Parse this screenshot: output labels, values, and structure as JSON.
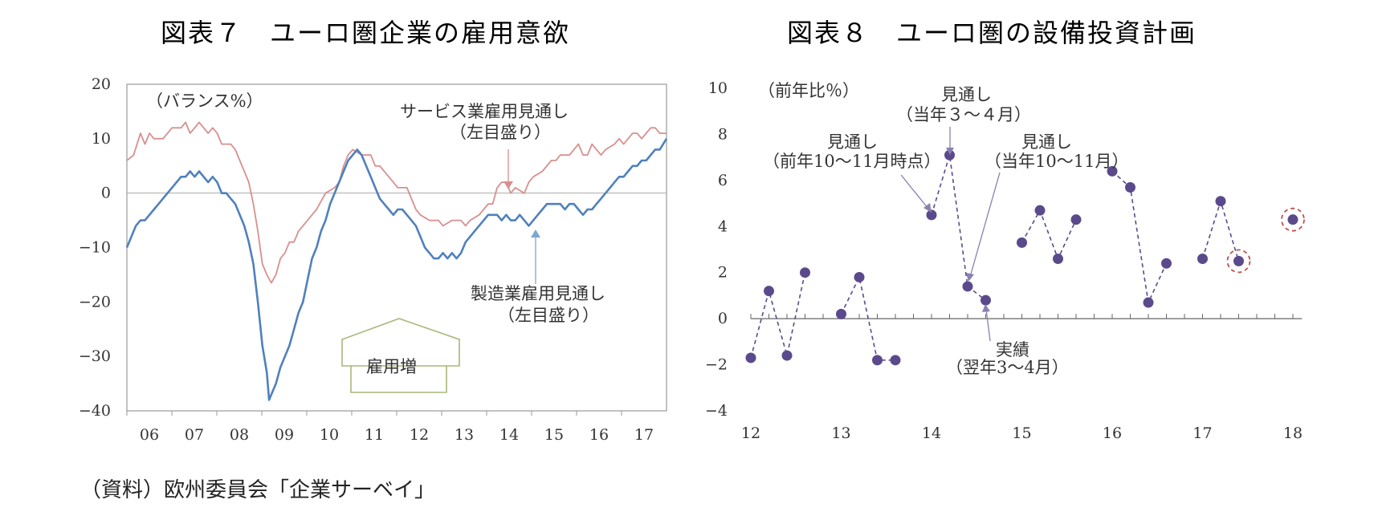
{
  "page": {
    "source_note": "（資料）欧州委員会「企業サーベイ」"
  },
  "charts": [
    {
      "title": "図表７　ユーロ圏企業の雇用意欲",
      "unit_label": "（バランス%）",
      "arrow_label": "雇用増",
      "series_labels": {
        "services_line1": "サービス業雇用見通し",
        "services_line2": "（左目盛り）",
        "manufacturing_line1": "製造業雇用見通し",
        "manufacturing_line2": "（左目盛り）"
      },
      "colors": {
        "services": "#d98f8f",
        "manufacturing": "#4f81bd",
        "zero": "#aaaaaa"
      }
    },
    {
      "title": "図表８　ユーロ圏の設備投資計画",
      "unit_label": "（前年比％）",
      "annotations": {
        "a1_line1": "見通し",
        "a1_line2": "（当年３～４月）",
        "a2_line1": "見通し",
        "a2_line2": "（前年10～11月時点）",
        "a3_line1": "見通し",
        "a3_line2": "（当年10～11月）",
        "a4_line1": "実績",
        "a4_line2": "（翌年3～4月）"
      },
      "colors": {
        "points": "#5b4a8b",
        "highlight": "#c0504d"
      }
    }
  ],
  "chart_data": [
    {
      "type": "line",
      "title": "図表７　ユーロ圏企業の雇用意欲",
      "ylabel": "（バランス%）",
      "ylim": [
        -40,
        20
      ],
      "yticks": [
        "20",
        "10",
        "0",
        "-10",
        "-20",
        "-30",
        "-40"
      ],
      "xticks": [
        "06",
        "07",
        "08",
        "09",
        "10",
        "11",
        "12",
        "13",
        "14",
        "15",
        "16",
        "17"
      ],
      "xlim": [
        2006,
        2017.95
      ],
      "series": [
        {
          "name": "サービス業雇用見通し（左目盛り）",
          "points": [
            [
              2006.0,
              6
            ],
            [
              2006.15,
              7
            ],
            [
              2006.3,
              11
            ],
            [
              2006.4,
              9
            ],
            [
              2006.5,
              11
            ],
            [
              2006.6,
              10
            ],
            [
              2006.8,
              10
            ],
            [
              2007.0,
              12
            ],
            [
              2007.2,
              12
            ],
            [
              2007.3,
              13
            ],
            [
              2007.4,
              11
            ],
            [
              2007.5,
              12
            ],
            [
              2007.6,
              13
            ],
            [
              2007.8,
              11
            ],
            [
              2007.9,
              12
            ],
            [
              2008.0,
              11
            ],
            [
              2008.1,
              9
            ],
            [
              2008.3,
              9
            ],
            [
              2008.4,
              8
            ],
            [
              2008.5,
              6
            ],
            [
              2008.6,
              4
            ],
            [
              2008.7,
              2
            ],
            [
              2008.8,
              -2
            ],
            [
              2008.9,
              -7
            ],
            [
              2009.0,
              -13
            ],
            [
              2009.1,
              -15
            ],
            [
              2009.2,
              -16.5
            ],
            [
              2009.3,
              -15
            ],
            [
              2009.4,
              -12
            ],
            [
              2009.5,
              -11
            ],
            [
              2009.6,
              -9
            ],
            [
              2009.7,
              -9
            ],
            [
              2009.8,
              -7
            ],
            [
              2009.9,
              -6
            ],
            [
              2010.0,
              -5
            ],
            [
              2010.2,
              -3
            ],
            [
              2010.4,
              0
            ],
            [
              2010.6,
              1
            ],
            [
              2010.7,
              2
            ],
            [
              2010.8,
              5
            ],
            [
              2010.9,
              7
            ],
            [
              2011.0,
              8
            ],
            [
              2011.2,
              7
            ],
            [
              2011.4,
              7
            ],
            [
              2011.5,
              5
            ],
            [
              2011.6,
              5
            ],
            [
              2011.8,
              3
            ],
            [
              2012.0,
              1
            ],
            [
              2012.2,
              1
            ],
            [
              2012.3,
              -1
            ],
            [
              2012.4,
              -3
            ],
            [
              2012.5,
              -4
            ],
            [
              2012.7,
              -5
            ],
            [
              2012.9,
              -5
            ],
            [
              2013.0,
              -6
            ],
            [
              2013.2,
              -5
            ],
            [
              2013.4,
              -5
            ],
            [
              2013.5,
              -6
            ],
            [
              2013.6,
              -5
            ],
            [
              2013.8,
              -4
            ],
            [
              2013.9,
              -3
            ],
            [
              2014.0,
              -2
            ],
            [
              2014.1,
              -2
            ],
            [
              2014.2,
              1
            ],
            [
              2014.3,
              2
            ],
            [
              2014.4,
              2
            ],
            [
              2014.5,
              0
            ],
            [
              2014.6,
              1
            ],
            [
              2014.8,
              0
            ],
            [
              2014.9,
              2
            ],
            [
              2015.0,
              3
            ],
            [
              2015.2,
              4
            ],
            [
              2015.4,
              6
            ],
            [
              2015.5,
              6
            ],
            [
              2015.6,
              7
            ],
            [
              2015.8,
              7
            ],
            [
              2015.9,
              8
            ],
            [
              2016.0,
              9
            ],
            [
              2016.1,
              7
            ],
            [
              2016.2,
              7
            ],
            [
              2016.3,
              9
            ],
            [
              2016.4,
              8
            ],
            [
              2016.5,
              7
            ],
            [
              2016.6,
              8
            ],
            [
              2016.8,
              9
            ],
            [
              2016.9,
              10
            ],
            [
              2017.0,
              9
            ],
            [
              2017.1,
              10
            ],
            [
              2017.2,
              11
            ],
            [
              2017.3,
              11
            ],
            [
              2017.4,
              10
            ],
            [
              2017.5,
              11
            ],
            [
              2017.6,
              12
            ],
            [
              2017.7,
              12
            ],
            [
              2017.8,
              11
            ],
            [
              2017.95,
              11
            ]
          ]
        },
        {
          "name": "製造業雇用見通し（左目盛り）",
          "points": [
            [
              2006.0,
              -10
            ],
            [
              2006.1,
              -8
            ],
            [
              2006.2,
              -6
            ],
            [
              2006.3,
              -5
            ],
            [
              2006.4,
              -5
            ],
            [
              2006.5,
              -4
            ],
            [
              2006.6,
              -3
            ],
            [
              2006.7,
              -2
            ],
            [
              2006.8,
              -1
            ],
            [
              2006.9,
              0
            ],
            [
              2007.0,
              1
            ],
            [
              2007.1,
              2
            ],
            [
              2007.2,
              3
            ],
            [
              2007.3,
              3
            ],
            [
              2007.4,
              4
            ],
            [
              2007.5,
              3
            ],
            [
              2007.6,
              4
            ],
            [
              2007.7,
              3
            ],
            [
              2007.8,
              2
            ],
            [
              2007.9,
              3
            ],
            [
              2008.0,
              2
            ],
            [
              2008.1,
              0
            ],
            [
              2008.2,
              0
            ],
            [
              2008.3,
              -1
            ],
            [
              2008.4,
              -2
            ],
            [
              2008.5,
              -4
            ],
            [
              2008.6,
              -6
            ],
            [
              2008.7,
              -9
            ],
            [
              2008.8,
              -13
            ],
            [
              2008.9,
              -20
            ],
            [
              2009.0,
              -28
            ],
            [
              2009.1,
              -33
            ],
            [
              2009.15,
              -38
            ],
            [
              2009.2,
              -37
            ],
            [
              2009.3,
              -35
            ],
            [
              2009.4,
              -32
            ],
            [
              2009.5,
              -30
            ],
            [
              2009.6,
              -28
            ],
            [
              2009.7,
              -25
            ],
            [
              2009.8,
              -22
            ],
            [
              2009.9,
              -20
            ],
            [
              2010.0,
              -16
            ],
            [
              2010.1,
              -12
            ],
            [
              2010.2,
              -10
            ],
            [
              2010.3,
              -7
            ],
            [
              2010.4,
              -5
            ],
            [
              2010.5,
              -2
            ],
            [
              2010.6,
              0
            ],
            [
              2010.7,
              2
            ],
            [
              2010.8,
              4
            ],
            [
              2010.9,
              6
            ],
            [
              2011.0,
              7
            ],
            [
              2011.1,
              8
            ],
            [
              2011.2,
              7
            ],
            [
              2011.3,
              5
            ],
            [
              2011.4,
              3
            ],
            [
              2011.5,
              1
            ],
            [
              2011.6,
              -1
            ],
            [
              2011.7,
              -2
            ],
            [
              2011.8,
              -3
            ],
            [
              2011.9,
              -4
            ],
            [
              2012.0,
              -3
            ],
            [
              2012.1,
              -3
            ],
            [
              2012.2,
              -4
            ],
            [
              2012.3,
              -5
            ],
            [
              2012.4,
              -6
            ],
            [
              2012.5,
              -8
            ],
            [
              2012.6,
              -10
            ],
            [
              2012.7,
              -11
            ],
            [
              2012.8,
              -12
            ],
            [
              2012.9,
              -12
            ],
            [
              2013.0,
              -11
            ],
            [
              2013.1,
              -12
            ],
            [
              2013.2,
              -11
            ],
            [
              2013.3,
              -12
            ],
            [
              2013.4,
              -11
            ],
            [
              2013.5,
              -9
            ],
            [
              2013.6,
              -8
            ],
            [
              2013.7,
              -7
            ],
            [
              2013.8,
              -6
            ],
            [
              2013.9,
              -5
            ],
            [
              2014.0,
              -4
            ],
            [
              2014.2,
              -4
            ],
            [
              2014.3,
              -5
            ],
            [
              2014.4,
              -4
            ],
            [
              2014.5,
              -5
            ],
            [
              2014.6,
              -5
            ],
            [
              2014.7,
              -4
            ],
            [
              2014.8,
              -5
            ],
            [
              2014.9,
              -6
            ],
            [
              2015.0,
              -5
            ],
            [
              2015.1,
              -4
            ],
            [
              2015.2,
              -3
            ],
            [
              2015.3,
              -2
            ],
            [
              2015.4,
              -2
            ],
            [
              2015.5,
              -2
            ],
            [
              2015.6,
              -2
            ],
            [
              2015.7,
              -3
            ],
            [
              2015.8,
              -2
            ],
            [
              2015.9,
              -2
            ],
            [
              2016.0,
              -3
            ],
            [
              2016.1,
              -4
            ],
            [
              2016.2,
              -3
            ],
            [
              2016.3,
              -3
            ],
            [
              2016.4,
              -2
            ],
            [
              2016.5,
              -1
            ],
            [
              2016.6,
              0
            ],
            [
              2016.7,
              1
            ],
            [
              2016.8,
              2
            ],
            [
              2016.9,
              3
            ],
            [
              2017.0,
              3
            ],
            [
              2017.1,
              4
            ],
            [
              2017.2,
              5
            ],
            [
              2017.3,
              5
            ],
            [
              2017.4,
              6
            ],
            [
              2017.5,
              6
            ],
            [
              2017.6,
              7
            ],
            [
              2017.7,
              8
            ],
            [
              2017.8,
              8
            ],
            [
              2017.95,
              10
            ]
          ]
        }
      ]
    },
    {
      "type": "scatter",
      "title": "図表８　ユーロ圏の設備投資計画",
      "ylabel": "（前年比％）",
      "ylim": [
        -4,
        10
      ],
      "yticks": [
        "10",
        "8",
        "6",
        "4",
        "2",
        "0",
        "-2",
        "-4"
      ],
      "xticks": [
        "12",
        "13",
        "14",
        "15",
        "16",
        "17",
        "18"
      ],
      "xlim": [
        12,
        18
      ],
      "groups": [
        {
          "label": "12",
          "points": [
            [
              12.0,
              -1.7
            ],
            [
              12.2,
              1.2
            ],
            [
              12.4,
              -1.6
            ],
            [
              12.6,
              2.0
            ]
          ]
        },
        {
          "label": "13",
          "points": [
            [
              13.0,
              0.2
            ],
            [
              13.2,
              1.8
            ],
            [
              13.4,
              -1.8
            ],
            [
              13.6,
              -1.8
            ]
          ]
        },
        {
          "label": "14",
          "points": [
            [
              14.0,
              4.5
            ],
            [
              14.2,
              7.1
            ],
            [
              14.4,
              1.4
            ],
            [
              14.6,
              0.8
            ]
          ]
        },
        {
          "label": "15",
          "points": [
            [
              15.0,
              3.3
            ],
            [
              15.2,
              4.7
            ],
            [
              15.4,
              2.6
            ],
            [
              15.6,
              4.3
            ]
          ]
        },
        {
          "label": "16",
          "points": [
            [
              16.0,
              6.4
            ],
            [
              16.2,
              5.7
            ],
            [
              16.4,
              0.7
            ],
            [
              16.6,
              2.4
            ]
          ]
        },
        {
          "label": "17",
          "points": [
            [
              17.0,
              2.6
            ],
            [
              17.2,
              5.1
            ],
            [
              17.4,
              2.5
            ]
          ]
        },
        {
          "label": "18",
          "points": [
            [
              18.0,
              4.3
            ]
          ]
        }
      ],
      "highlighted": [
        [
          17.4,
          2.5
        ],
        [
          18.0,
          4.3
        ]
      ]
    }
  ]
}
